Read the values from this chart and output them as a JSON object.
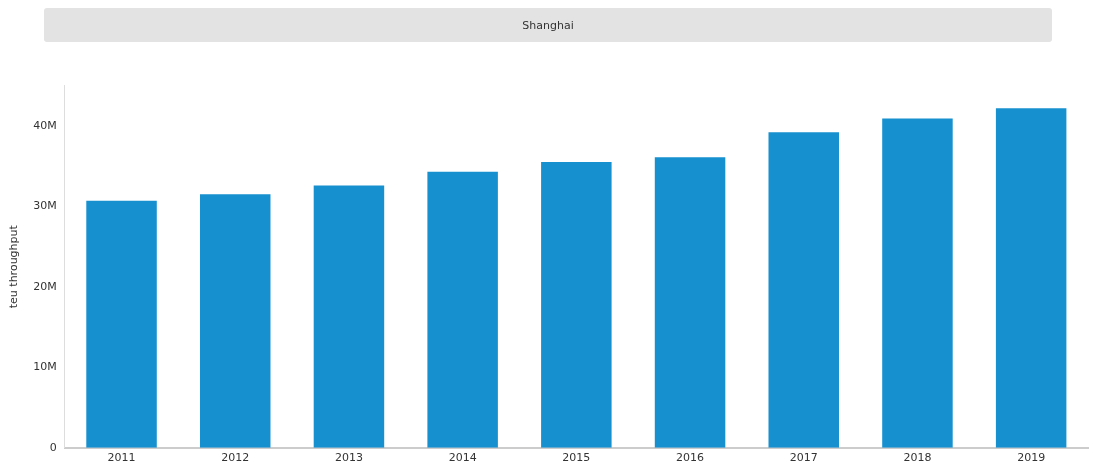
{
  "chart_data": {
    "type": "bar",
    "title": "Shanghai",
    "ylabel": "teu throughput",
    "categories": [
      "2011",
      "2012",
      "2013",
      "2014",
      "2015",
      "2016",
      "2017",
      "2018",
      "2019"
    ],
    "values": [
      30700000,
      31500000,
      32600000,
      34300000,
      35500000,
      36100000,
      39200000,
      40900000,
      42200000
    ],
    "color": "#1790d0",
    "ylim": [
      0,
      45000000
    ],
    "yticks": [
      {
        "value": 0,
        "label": "0"
      },
      {
        "value": 10000000,
        "label": "10M"
      },
      {
        "value": 20000000,
        "label": "20M"
      },
      {
        "value": 30000000,
        "label": "30M"
      },
      {
        "value": 40000000,
        "label": "40M"
      }
    ],
    "grid": false,
    "legend": false
  }
}
